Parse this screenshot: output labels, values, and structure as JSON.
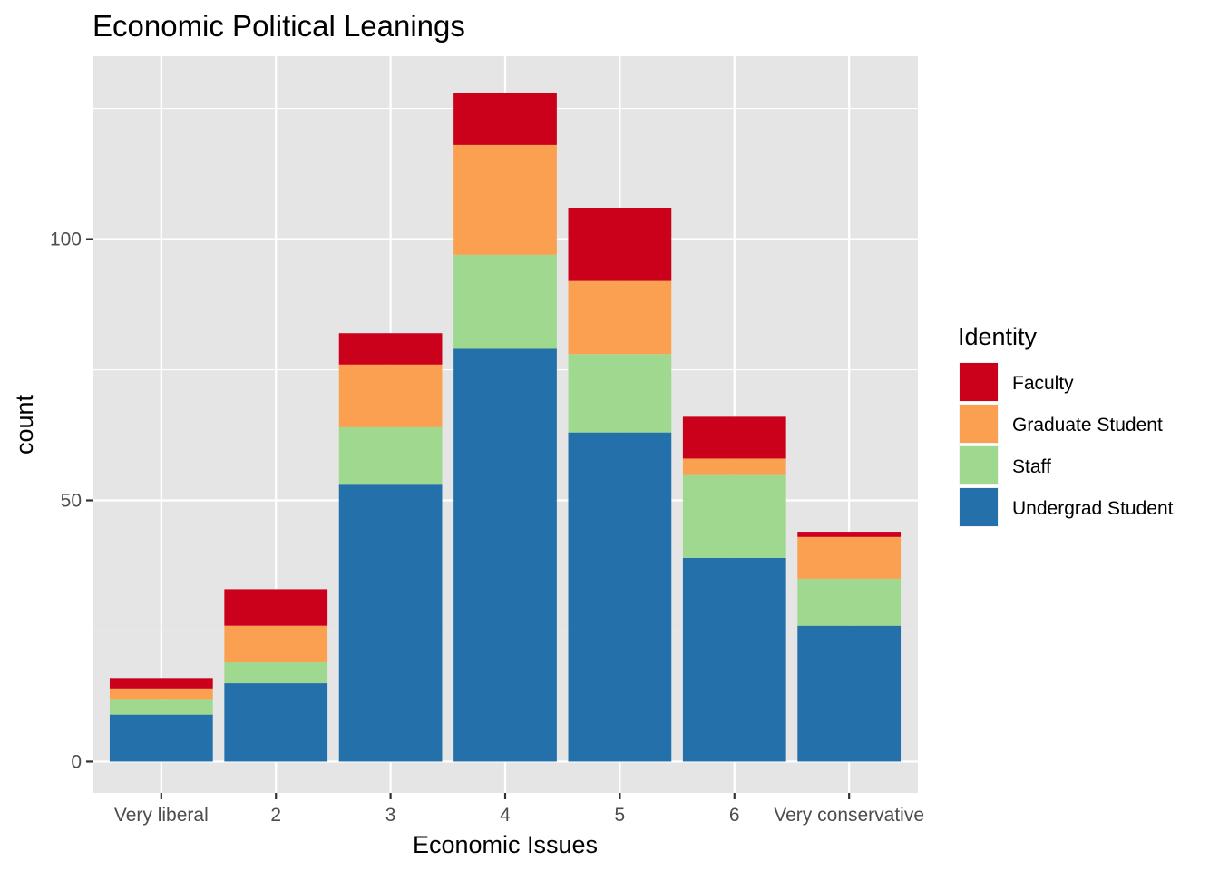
{
  "chart_data": {
    "type": "bar",
    "stacked": true,
    "title": "Economic Political Leanings",
    "xlabel": "Economic Issues",
    "ylabel": "count",
    "categories": [
      "Very liberal",
      "2",
      "3",
      "4",
      "5",
      "6",
      "Very conservative"
    ],
    "yticks": [
      0,
      50,
      100
    ],
    "ylim": [
      -6,
      135
    ],
    "grid": true,
    "legend": {
      "title": "Identity",
      "position": "right"
    },
    "series": [
      {
        "name": "Undergrad Student",
        "color": "#2470ab",
        "values": [
          9,
          15,
          53,
          79,
          63,
          39,
          26
        ]
      },
      {
        "name": "Staff",
        "color": "#9fd98f",
        "values": [
          3,
          4,
          11,
          18,
          15,
          16,
          9
        ]
      },
      {
        "name": "Graduate Student",
        "color": "#fba050",
        "values": [
          2,
          7,
          12,
          21,
          14,
          3,
          8
        ]
      },
      {
        "name": "Faculty",
        "color": "#cb001b",
        "values": [
          2,
          7,
          6,
          10,
          14,
          8,
          1
        ]
      }
    ],
    "legend_order": [
      "Faculty",
      "Graduate Student",
      "Staff",
      "Undergrad Student"
    ],
    "panel_color": "#e5e5e5",
    "grid_color": "#ffffff"
  }
}
